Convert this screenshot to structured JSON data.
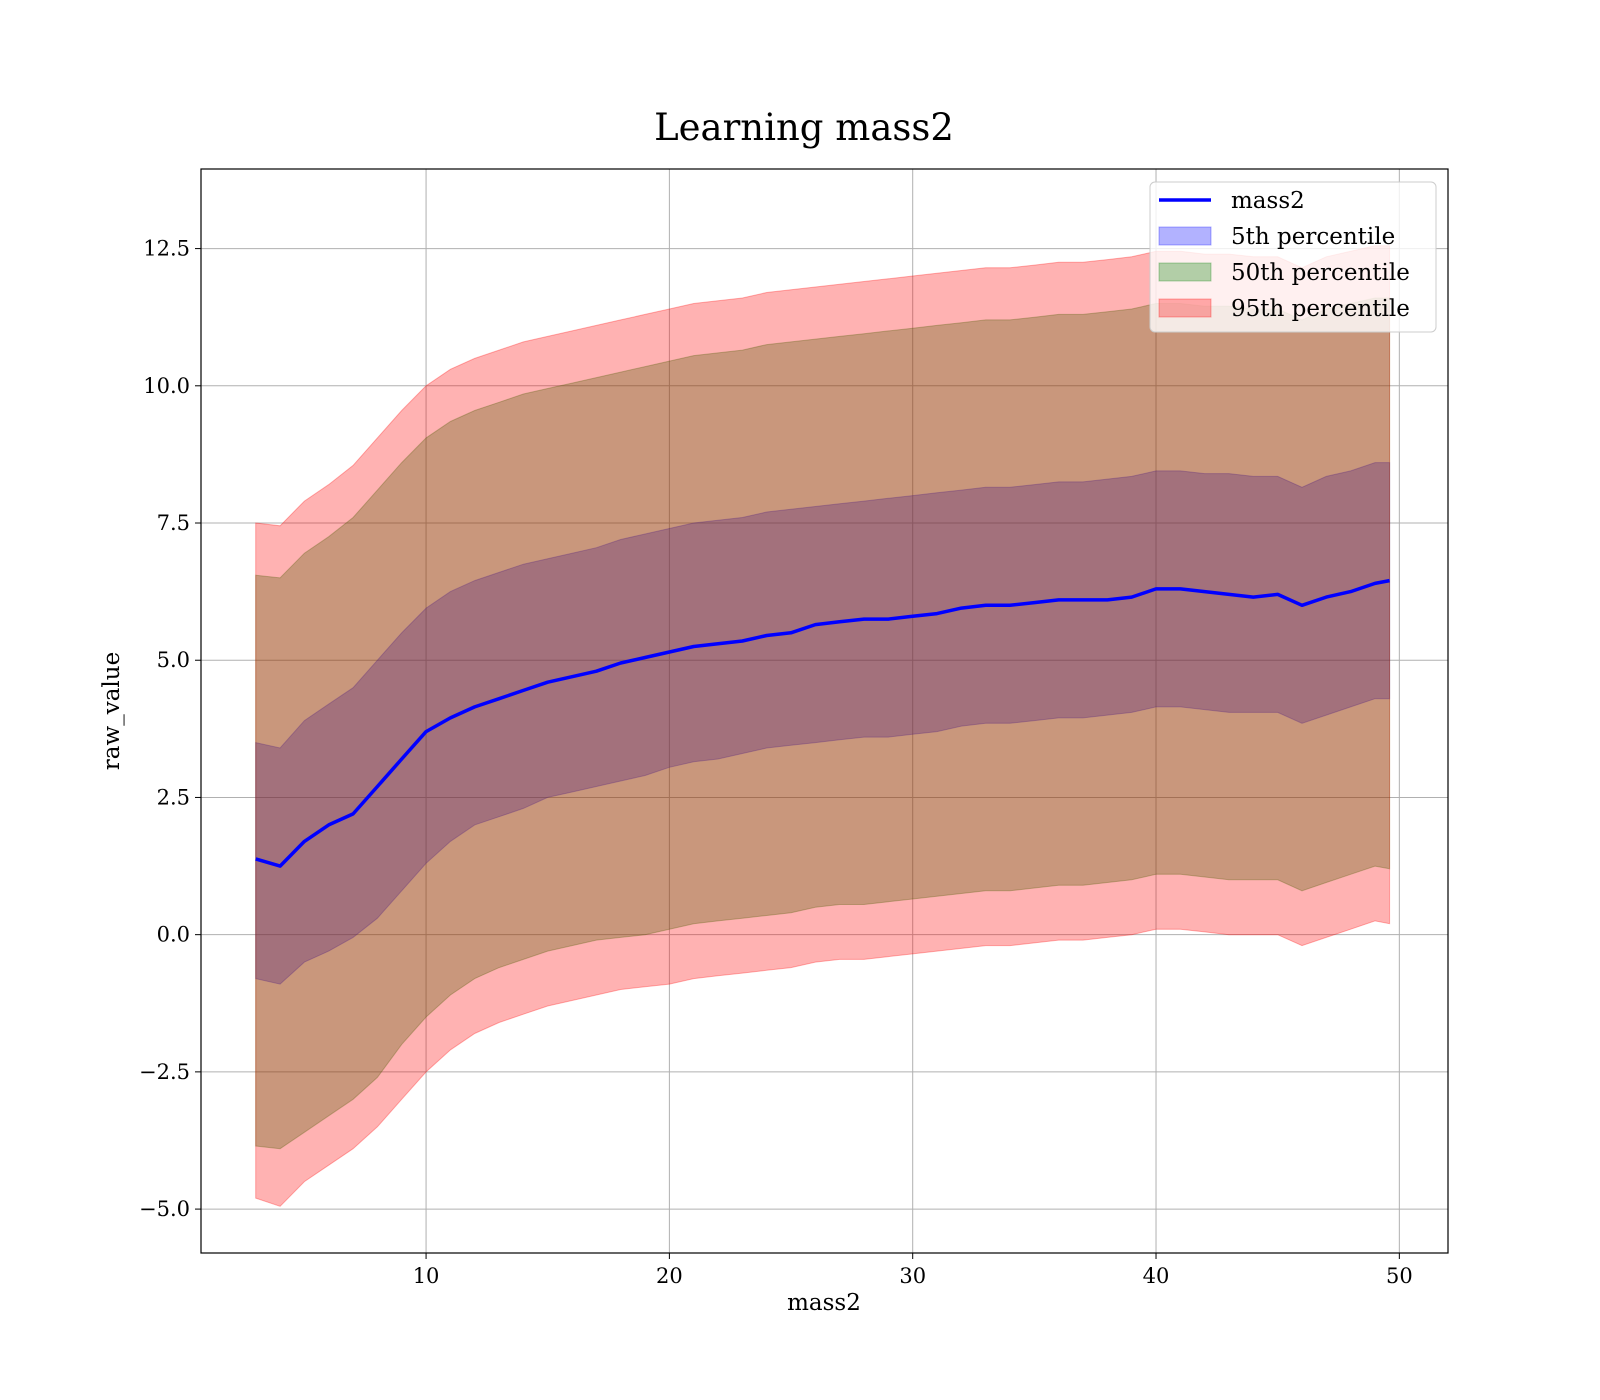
{
  "chart_data": {
    "type": "area",
    "title": "Learning mass2",
    "xlabel": "mass2",
    "ylabel": "raw_value",
    "xlim": [
      0.75,
      52
    ],
    "ylim": [
      -5.8,
      13.95
    ],
    "x_ticks": [
      10,
      20,
      30,
      40,
      50
    ],
    "x_tick_labels": [
      "10",
      "20",
      "30",
      "40",
      "50"
    ],
    "y_ticks": [
      -5.0,
      -2.5,
      0.0,
      2.5,
      5.0,
      7.5,
      10.0,
      12.5
    ],
    "y_tick_labels": [
      "−5.0",
      "−2.5",
      "0.0",
      "2.5",
      "5.0",
      "7.5",
      "10.0",
      "12.5"
    ],
    "grid": true,
    "legend_position": "top-right",
    "x": [
      3.0,
      4.0,
      5.0,
      6.0,
      7.0,
      8.0,
      9.0,
      10.0,
      11.0,
      12.0,
      13.0,
      14.0,
      15.0,
      16.0,
      17.0,
      18.0,
      19.0,
      20.0,
      21.0,
      22.0,
      23.0,
      24.0,
      25.0,
      26.0,
      27.0,
      28.0,
      29.0,
      30.0,
      31.0,
      32.0,
      33.0,
      34.0,
      35.0,
      36.0,
      37.0,
      38.0,
      39.0,
      40.0,
      41.0,
      42.0,
      43.0,
      44.0,
      45.0,
      46.0,
      47.0,
      48.0,
      49.0,
      49.6
    ],
    "series": [
      {
        "name": "mass2",
        "kind": "line",
        "color": "#0000ff",
        "values": [
          1.38,
          1.25,
          1.7,
          2.0,
          2.2,
          2.7,
          3.2,
          3.7,
          3.95,
          4.15,
          4.3,
          4.45,
          4.6,
          4.7,
          4.8,
          4.95,
          5.05,
          5.15,
          5.25,
          5.3,
          5.35,
          5.45,
          5.5,
          5.65,
          5.7,
          5.75,
          5.75,
          5.8,
          5.85,
          5.95,
          6.0,
          6.0,
          6.05,
          6.1,
          6.1,
          6.1,
          6.15,
          6.3,
          6.3,
          6.25,
          6.2,
          6.15,
          6.2,
          6.0,
          6.15,
          6.25,
          6.4,
          6.45
        ]
      },
      {
        "name": "5th percentile",
        "kind": "band",
        "color": "#0000ff",
        "opacity": 0.3,
        "lower": [
          -0.8,
          -0.9,
          -0.5,
          -0.3,
          -0.05,
          0.3,
          0.8,
          1.3,
          1.7,
          2.0,
          2.15,
          2.3,
          2.5,
          2.6,
          2.7,
          2.8,
          2.9,
          3.05,
          3.15,
          3.2,
          3.3,
          3.4,
          3.45,
          3.5,
          3.55,
          3.6,
          3.6,
          3.65,
          3.7,
          3.8,
          3.85,
          3.85,
          3.9,
          3.95,
          3.95,
          4.0,
          4.05,
          4.15,
          4.15,
          4.1,
          4.05,
          4.05,
          4.05,
          3.85,
          4.0,
          4.15,
          4.3,
          4.3
        ],
        "upper": [
          3.5,
          3.4,
          3.9,
          4.2,
          4.5,
          5.0,
          5.5,
          5.95,
          6.25,
          6.45,
          6.6,
          6.75,
          6.85,
          6.95,
          7.05,
          7.2,
          7.3,
          7.4,
          7.5,
          7.55,
          7.6,
          7.7,
          7.75,
          7.8,
          7.85,
          7.9,
          7.95,
          8.0,
          8.05,
          8.1,
          8.15,
          8.15,
          8.2,
          8.25,
          8.25,
          8.3,
          8.35,
          8.45,
          8.45,
          8.4,
          8.4,
          8.35,
          8.35,
          8.15,
          8.35,
          8.45,
          8.6,
          8.6
        ]
      },
      {
        "name": "50th percentile",
        "kind": "band",
        "color": "#008000",
        "opacity": 0.3,
        "lower": [
          -3.85,
          -3.9,
          -3.6,
          -3.3,
          -3.0,
          -2.6,
          -2.0,
          -1.5,
          -1.1,
          -0.8,
          -0.6,
          -0.45,
          -0.3,
          -0.2,
          -0.1,
          -0.05,
          0.0,
          0.1,
          0.2,
          0.25,
          0.3,
          0.35,
          0.4,
          0.5,
          0.55,
          0.55,
          0.6,
          0.65,
          0.7,
          0.75,
          0.8,
          0.8,
          0.85,
          0.9,
          0.9,
          0.95,
          1.0,
          1.1,
          1.1,
          1.05,
          1.0,
          1.0,
          1.0,
          0.8,
          0.95,
          1.1,
          1.25,
          1.2
        ],
        "upper": [
          6.55,
          6.5,
          6.95,
          7.25,
          7.6,
          8.1,
          8.6,
          9.05,
          9.35,
          9.55,
          9.7,
          9.85,
          9.95,
          10.05,
          10.15,
          10.25,
          10.35,
          10.45,
          10.55,
          10.6,
          10.65,
          10.75,
          10.8,
          10.85,
          10.9,
          10.95,
          11.0,
          11.05,
          11.1,
          11.15,
          11.2,
          11.2,
          11.25,
          11.3,
          11.3,
          11.35,
          11.4,
          11.5,
          11.5,
          11.45,
          11.45,
          11.4,
          11.4,
          11.2,
          11.4,
          11.5,
          11.6,
          11.6
        ]
      },
      {
        "name": "95th percentile",
        "kind": "band",
        "color": "#ff0000",
        "opacity": 0.3,
        "lower": [
          -4.8,
          -4.95,
          -4.5,
          -4.2,
          -3.9,
          -3.5,
          -3.0,
          -2.5,
          -2.1,
          -1.8,
          -1.6,
          -1.45,
          -1.3,
          -1.2,
          -1.1,
          -1.0,
          -0.95,
          -0.9,
          -0.8,
          -0.75,
          -0.7,
          -0.65,
          -0.6,
          -0.5,
          -0.45,
          -0.45,
          -0.4,
          -0.35,
          -0.3,
          -0.25,
          -0.2,
          -0.2,
          -0.15,
          -0.1,
          -0.1,
          -0.05,
          0.0,
          0.1,
          0.1,
          0.05,
          0.0,
          0.0,
          0.0,
          -0.2,
          -0.05,
          0.1,
          0.25,
          0.2
        ],
        "upper": [
          7.5,
          7.45,
          7.9,
          8.2,
          8.55,
          9.05,
          9.55,
          10.0,
          10.3,
          10.5,
          10.65,
          10.8,
          10.9,
          11.0,
          11.1,
          11.2,
          11.3,
          11.4,
          11.5,
          11.55,
          11.6,
          11.7,
          11.75,
          11.8,
          11.85,
          11.9,
          11.95,
          12.0,
          12.05,
          12.1,
          12.15,
          12.15,
          12.2,
          12.25,
          12.25,
          12.3,
          12.35,
          12.45,
          12.45,
          12.4,
          12.4,
          12.35,
          12.35,
          12.15,
          12.35,
          12.45,
          12.55,
          12.55
        ]
      }
    ]
  }
}
